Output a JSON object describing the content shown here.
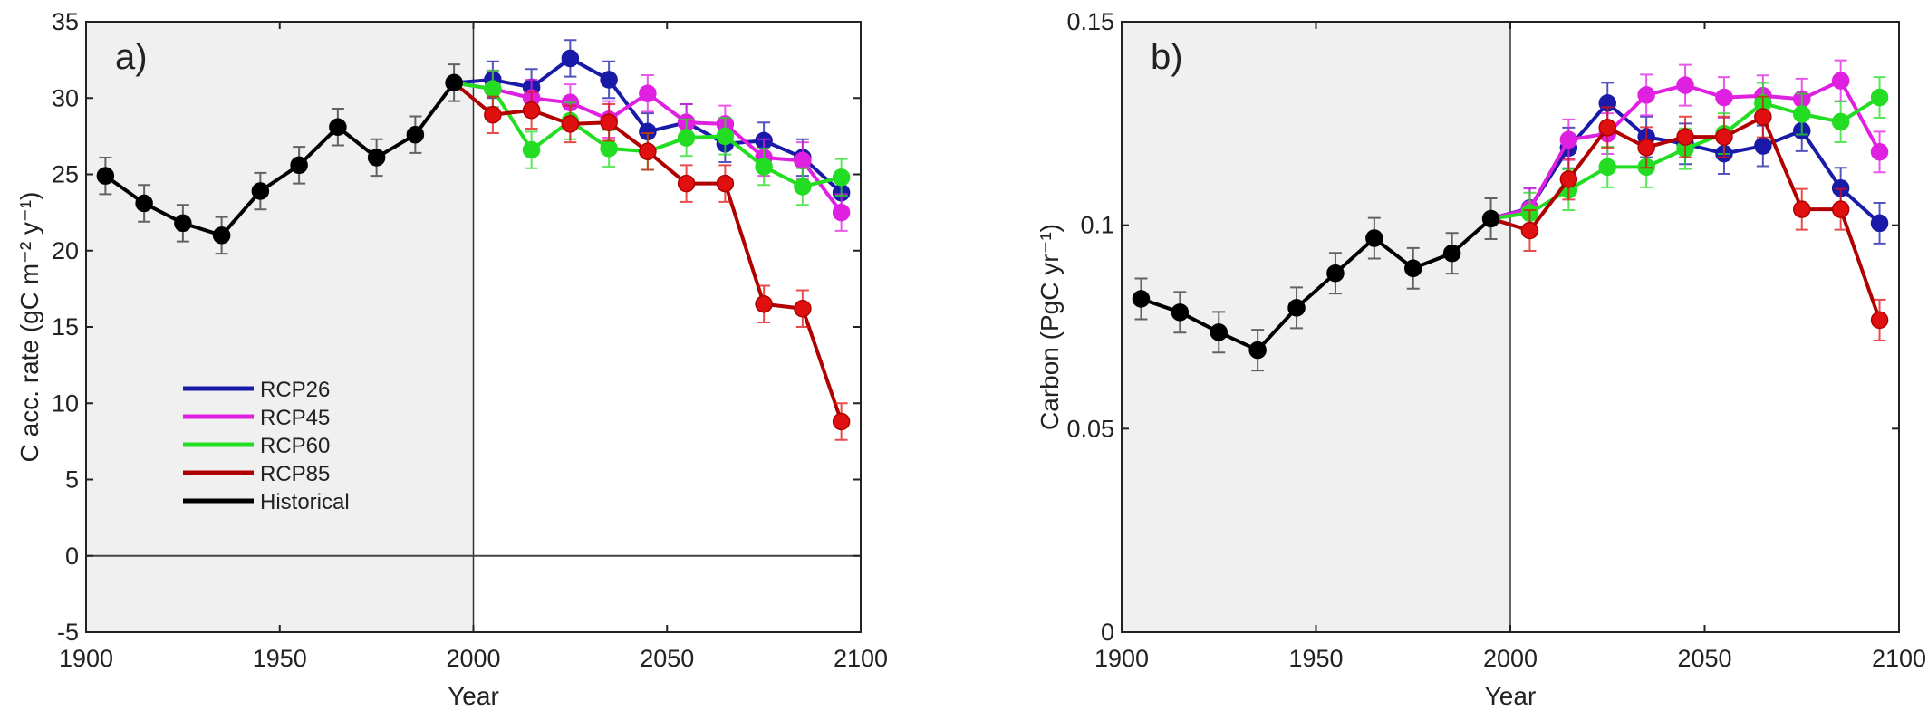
{
  "chart_data": [
    {
      "type": "line",
      "panel_label": "a)",
      "xlabel": "Year",
      "ylabel": "C acc. rate (gC m⁻² y⁻¹)",
      "xlim": [
        1900,
        2100
      ],
      "ylim": [
        -5,
        35
      ],
      "xticks": [
        "1900",
        "1950",
        "2000",
        "2050",
        "2100"
      ],
      "yticks": [
        "-5",
        "0",
        "5",
        "10",
        "15",
        "20",
        "25",
        "30",
        "35"
      ],
      "historical_shading": [
        1900,
        2000
      ],
      "zero_line": true,
      "grid": false,
      "legend": "center-left",
      "error_bar_approx": 1.2,
      "series": [
        {
          "name": "RCP26",
          "color": "#1a1aa8",
          "x": [
            1995,
            2005,
            2015,
            2025,
            2035,
            2045,
            2055,
            2065,
            2075,
            2085,
            2095
          ],
          "values": [
            31.0,
            31.2,
            30.7,
            32.6,
            31.2,
            27.8,
            28.4,
            27.0,
            27.2,
            26.1,
            23.8
          ]
        },
        {
          "name": "RCP45",
          "color": "#e020e0",
          "x": [
            1995,
            2005,
            2015,
            2025,
            2035,
            2045,
            2055,
            2065,
            2075,
            2085,
            2095
          ],
          "values": [
            31.0,
            30.6,
            30.0,
            29.7,
            28.6,
            30.3,
            28.4,
            28.3,
            26.1,
            25.9,
            22.5
          ]
        },
        {
          "name": "RCP60",
          "color": "#22dd22",
          "x": [
            1995,
            2005,
            2015,
            2025,
            2035,
            2045,
            2055,
            2065,
            2075,
            2085,
            2095
          ],
          "values": [
            31.0,
            30.6,
            26.6,
            28.5,
            26.7,
            26.5,
            27.4,
            27.5,
            25.5,
            24.2,
            24.8
          ]
        },
        {
          "name": "RCP85",
          "color": "#e01010",
          "line_color": "#b00000",
          "x": [
            1995,
            2005,
            2015,
            2025,
            2035,
            2045,
            2055,
            2065,
            2075,
            2085,
            2095
          ],
          "values": [
            31.0,
            28.9,
            29.2,
            28.3,
            28.4,
            26.5,
            24.4,
            24.4,
            16.5,
            16.2,
            8.8
          ]
        },
        {
          "name": "Historical",
          "color": "#000000",
          "x": [
            1905,
            1915,
            1925,
            1935,
            1945,
            1955,
            1965,
            1975,
            1985,
            1995
          ],
          "values": [
            24.9,
            23.1,
            21.8,
            21.0,
            23.9,
            25.6,
            28.1,
            26.1,
            27.6,
            31.0
          ]
        }
      ]
    },
    {
      "type": "line",
      "panel_label": "b)",
      "xlabel": "Year",
      "ylabel": "Carbon (PgC yr⁻¹)",
      "xlim": [
        1900,
        2100
      ],
      "ylim": [
        0,
        0.15
      ],
      "xticks": [
        "1900",
        "1950",
        "2000",
        "2050",
        "2100"
      ],
      "yticks": [
        "0",
        "0.05",
        "0.1",
        "0.15"
      ],
      "historical_shading": [
        1900,
        2000
      ],
      "grid": false,
      "error_bar_approx": 0.005,
      "series": [
        {
          "name": "RCP26",
          "color": "#1a1aa8",
          "x": [
            1995,
            2005,
            2015,
            2025,
            2035,
            2045,
            2055,
            2065,
            2075,
            2085,
            2095
          ],
          "values": [
            0.1016,
            0.1042,
            0.119,
            0.13,
            0.1217,
            0.12,
            0.1176,
            0.1195,
            0.1232,
            0.1091,
            0.1005
          ]
        },
        {
          "name": "RCP45",
          "color": "#e020e0",
          "x": [
            1995,
            2005,
            2015,
            2025,
            2035,
            2045,
            2055,
            2065,
            2075,
            2085,
            2095
          ],
          "values": [
            0.1016,
            0.104,
            0.121,
            0.1225,
            0.132,
            0.1344,
            0.1314,
            0.1318,
            0.131,
            0.1355,
            0.118
          ]
        },
        {
          "name": "RCP60",
          "color": "#22dd22",
          "x": [
            1995,
            2005,
            2015,
            2025,
            2035,
            2045,
            2055,
            2065,
            2075,
            2085,
            2095
          ],
          "values": [
            0.1016,
            0.103,
            0.1087,
            0.1143,
            0.1143,
            0.1188,
            0.1225,
            0.13,
            0.1273,
            0.1254,
            0.1314
          ]
        },
        {
          "name": "RCP85",
          "color": "#e01010",
          "line_color": "#b00000",
          "x": [
            1995,
            2005,
            2015,
            2025,
            2035,
            2045,
            2055,
            2065,
            2075,
            2085,
            2095
          ],
          "values": [
            0.1016,
            0.0987,
            0.1113,
            0.124,
            0.1191,
            0.1217,
            0.1217,
            0.1266,
            0.1039,
            0.1039,
            0.0767
          ]
        },
        {
          "name": "Historical",
          "color": "#000000",
          "x": [
            1905,
            1915,
            1925,
            1935,
            1945,
            1955,
            1965,
            1975,
            1985,
            1995
          ],
          "values": [
            0.0819,
            0.0786,
            0.0737,
            0.0693,
            0.0797,
            0.0882,
            0.0968,
            0.0894,
            0.0931,
            0.1016
          ]
        }
      ]
    }
  ]
}
